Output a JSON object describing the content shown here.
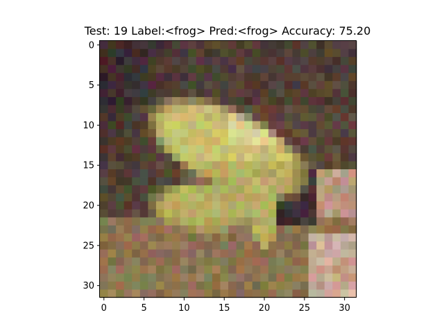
{
  "title": "Test: 19  Label:<frog>  Pred:<frog>  Accuracy: 75.20",
  "image": {
    "subject": "frog",
    "grid_size": 32,
    "palette": {
      "background_dark": "#3a2a30",
      "background_brown": "#5a4838",
      "frog_yellow": "#c9c070",
      "frog_highlight": "#e8e0b0",
      "frog_shadow": "#8a8040",
      "ground_tan": "#9a7a58",
      "ground_pink": "#d8b8a8",
      "moss_green": "#6a6a40"
    }
  },
  "axes": {
    "x_ticks": [
      "0",
      "5",
      "10",
      "15",
      "20",
      "25",
      "30"
    ],
    "y_ticks": [
      "0",
      "5",
      "10",
      "15",
      "20",
      "25",
      "30"
    ],
    "xlim": [
      -0.5,
      31.5
    ],
    "ylim": [
      31.5,
      -0.5
    ]
  }
}
